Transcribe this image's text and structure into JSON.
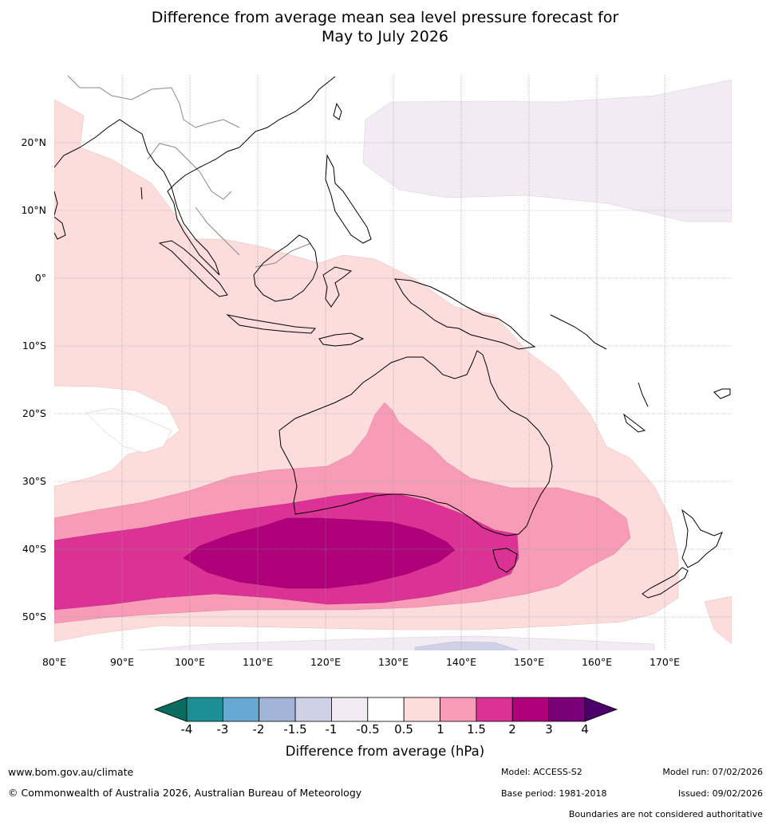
{
  "title": {
    "line1": "Difference from average mean sea level pressure forecast for",
    "line2": "May to July 2026"
  },
  "map": {
    "lat_labels": [
      "20°N",
      "10°N",
      "0°",
      "10°S",
      "20°S",
      "30°S",
      "40°S",
      "50°S"
    ],
    "lon_labels": [
      "80°E",
      "90°E",
      "100°E",
      "110°E",
      "120°E",
      "130°E",
      "140°E",
      "150°E",
      "160°E",
      "170°E"
    ],
    "lon_range": [
      80,
      180
    ],
    "lat_range": [
      -55,
      30
    ],
    "colors": {
      "light_purple": "#f3ebf4",
      "light_lavender": "#cfd1e6",
      "pale_pink": "#fddcdc",
      "pink": "#f89bb8",
      "magenta": "#dc3295",
      "deep_magenta": "#b0007a",
      "coast": "#000000",
      "border": "#888888"
    }
  },
  "colorbar": {
    "ticks": [
      "-4",
      "-3",
      "-2",
      "-1.5",
      "-1",
      "-0.5",
      "0.5",
      "1",
      "1.5",
      "2",
      "3",
      "4"
    ],
    "colors": [
      "#1b8f93",
      "#66a8d1",
      "#a2b5d8",
      "#cfd1e6",
      "#f3ebf4",
      "#ffffff",
      "#fddcdc",
      "#f89bb8",
      "#dc3295",
      "#b0007a",
      "#7a0077"
    ],
    "low_extend_color": "#0a6b5e",
    "high_extend_color": "#4b0069",
    "title": "Difference from average (hPa)"
  },
  "footer": {
    "website": "www.bom.gov.au/climate",
    "copyright": "© Commonwealth of Australia 2026, Australian Bureau of Meteorology",
    "model": "Model: ACCESS-S2",
    "base_period": "Base period: 1981-2018",
    "model_run": "Model run: 07/02/2026",
    "issued": "Issued: 09/02/2026",
    "disclaimer": "Boundaries are not considered authoritative"
  }
}
